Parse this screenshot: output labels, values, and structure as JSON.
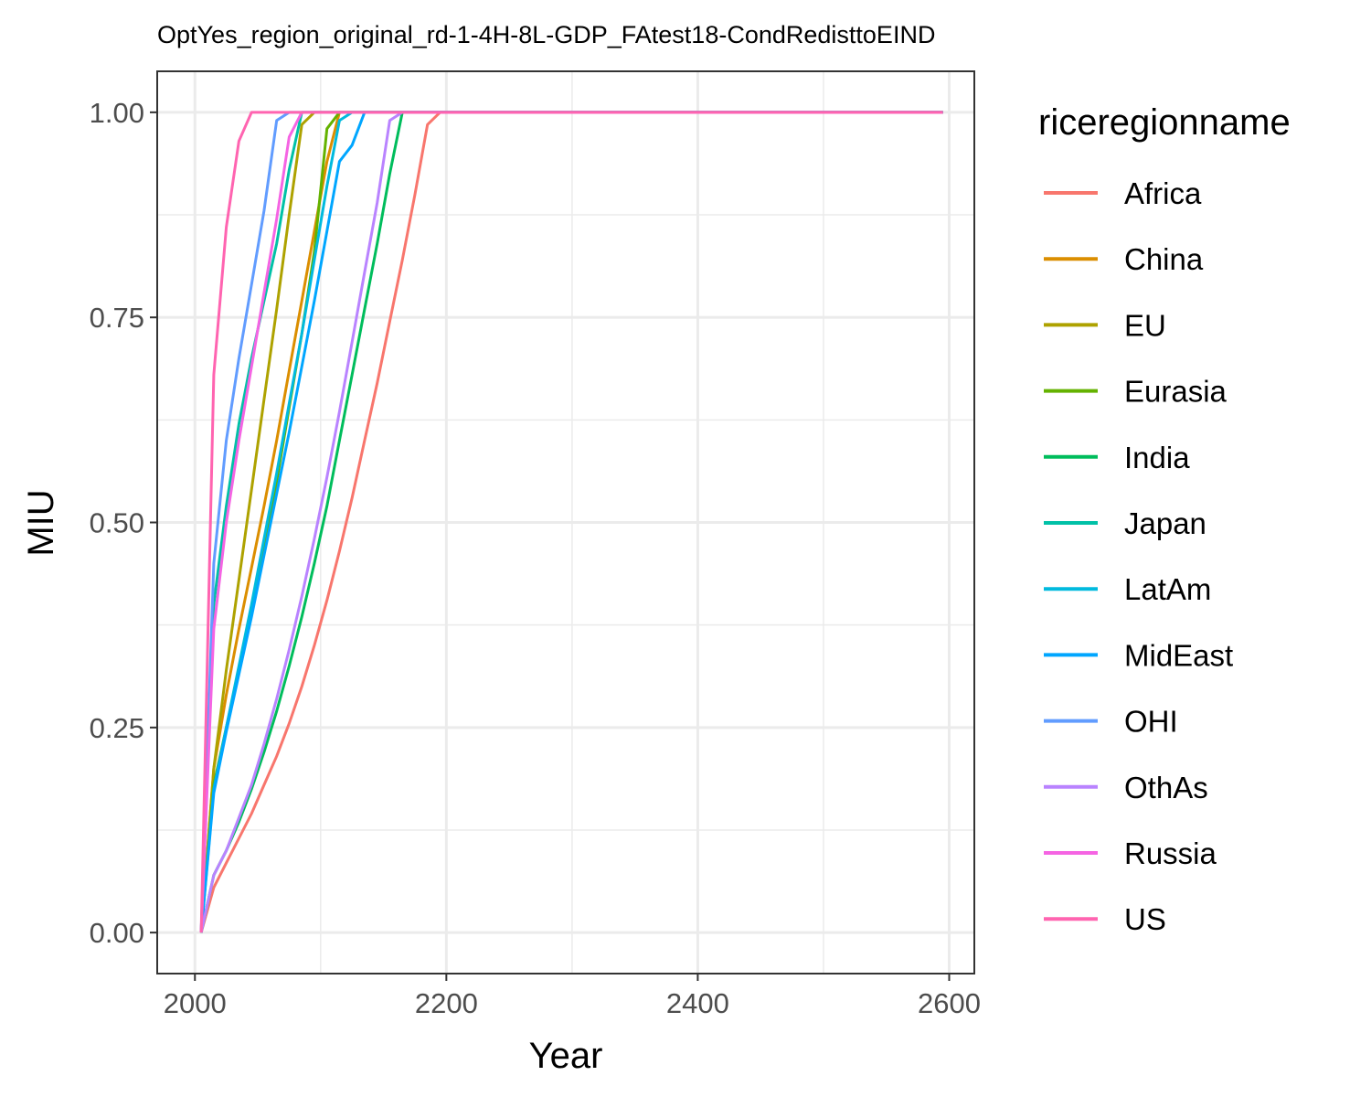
{
  "chart_data": {
    "type": "line",
    "title": "OptYes_region_original_rd-1-4H-8L-GDP_FAtest18-CondRedisttoEIND",
    "xlabel": "Year",
    "ylabel": "MIU",
    "xlim": [
      1970,
      2620
    ],
    "ylim": [
      -0.05,
      1.05
    ],
    "x_ticks": [
      2000,
      2200,
      2400,
      2600
    ],
    "x_tick_labels": [
      "2000",
      "2200",
      "2400",
      "2600"
    ],
    "y_ticks": [
      0,
      0.25,
      0.5,
      0.75,
      1
    ],
    "y_tick_labels": [
      "0.00",
      "0.25",
      "0.50",
      "0.75",
      "1.00"
    ],
    "grid": true,
    "legend": {
      "title": "riceregionname",
      "position": "right"
    },
    "series": [
      {
        "name": "Africa",
        "color": "#F8766D",
        "x": [
          2005,
          2015,
          2025,
          2035,
          2045,
          2055,
          2065,
          2075,
          2085,
          2095,
          2105,
          2115,
          2125,
          2135,
          2145,
          2155,
          2165,
          2175,
          2185,
          2195,
          2595
        ],
        "y": [
          0,
          0.055,
          0.085,
          0.115,
          0.145,
          0.18,
          0.215,
          0.255,
          0.3,
          0.35,
          0.405,
          0.465,
          0.53,
          0.6,
          0.67,
          0.745,
          0.82,
          0.9,
          0.985,
          1,
          1
        ]
      },
      {
        "name": "China",
        "color": "#DB8E00",
        "x": [
          2005,
          2015,
          2025,
          2035,
          2045,
          2055,
          2065,
          2075,
          2085,
          2095,
          2105,
          2115,
          2595
        ],
        "y": [
          0,
          0.2,
          0.29,
          0.37,
          0.445,
          0.52,
          0.6,
          0.685,
          0.77,
          0.855,
          0.94,
          1,
          1
        ]
      },
      {
        "name": "EU",
        "color": "#AEA200",
        "x": [
          2005,
          2015,
          2025,
          2035,
          2045,
          2055,
          2065,
          2075,
          2085,
          2095,
          2595
        ],
        "y": [
          0,
          0.2,
          0.32,
          0.43,
          0.54,
          0.65,
          0.76,
          0.875,
          0.985,
          1,
          1
        ]
      },
      {
        "name": "Eurasia",
        "color": "#64B200",
        "x": [
          2005,
          2015,
          2025,
          2035,
          2045,
          2055,
          2065,
          2075,
          2085,
          2095,
          2105,
          2115,
          2595
        ],
        "y": [
          0,
          0.18,
          0.25,
          0.32,
          0.39,
          0.47,
          0.55,
          0.64,
          0.73,
          0.83,
          0.98,
          1,
          1
        ]
      },
      {
        "name": "India",
        "color": "#00BD5C",
        "x": [
          2005,
          2015,
          2025,
          2035,
          2045,
          2055,
          2065,
          2075,
          2085,
          2095,
          2105,
          2115,
          2125,
          2135,
          2145,
          2155,
          2165,
          2595
        ],
        "y": [
          0,
          0.07,
          0.1,
          0.135,
          0.175,
          0.22,
          0.27,
          0.325,
          0.385,
          0.45,
          0.52,
          0.6,
          0.68,
          0.76,
          0.84,
          0.925,
          1,
          1
        ]
      },
      {
        "name": "Japan",
        "color": "#00C1A7",
        "x": [
          2005,
          2015,
          2025,
          2035,
          2045,
          2055,
          2065,
          2075,
          2085,
          2595
        ],
        "y": [
          0,
          0.4,
          0.52,
          0.62,
          0.7,
          0.77,
          0.84,
          0.93,
          1,
          1
        ]
      },
      {
        "name": "LatAm",
        "color": "#00BADE",
        "x": [
          2005,
          2015,
          2025,
          2035,
          2045,
          2055,
          2065,
          2075,
          2085,
          2095,
          2105,
          2115,
          2125,
          2595
        ],
        "y": [
          0,
          0.175,
          0.25,
          0.325,
          0.4,
          0.48,
          0.56,
          0.645,
          0.73,
          0.82,
          0.91,
          0.99,
          1,
          1
        ]
      },
      {
        "name": "MidEast",
        "color": "#00A6FF",
        "x": [
          2005,
          2015,
          2025,
          2035,
          2045,
          2055,
          2065,
          2075,
          2085,
          2095,
          2105,
          2115,
          2125,
          2135,
          2595
        ],
        "y": [
          0,
          0.17,
          0.245,
          0.315,
          0.385,
          0.46,
          0.535,
          0.61,
          0.69,
          0.77,
          0.855,
          0.94,
          0.96,
          1,
          1
        ]
      },
      {
        "name": "OHI",
        "color": "#619CFF",
        "x": [
          2005,
          2015,
          2025,
          2035,
          2045,
          2055,
          2065,
          2075,
          2595
        ],
        "y": [
          0,
          0.45,
          0.6,
          0.7,
          0.79,
          0.88,
          0.99,
          1,
          1
        ]
      },
      {
        "name": "OthAs",
        "color": "#B983FF",
        "x": [
          2005,
          2015,
          2025,
          2035,
          2045,
          2055,
          2065,
          2075,
          2085,
          2095,
          2105,
          2115,
          2125,
          2135,
          2145,
          2155,
          2165,
          2595
        ],
        "y": [
          0,
          0.07,
          0.1,
          0.14,
          0.18,
          0.23,
          0.285,
          0.345,
          0.41,
          0.48,
          0.555,
          0.635,
          0.72,
          0.805,
          0.89,
          0.99,
          1,
          1
        ]
      },
      {
        "name": "Russia",
        "color": "#F564E3",
        "x": [
          2005,
          2015,
          2025,
          2035,
          2045,
          2055,
          2065,
          2075,
          2085,
          2595
        ],
        "y": [
          0,
          0.37,
          0.5,
          0.6,
          0.69,
          0.78,
          0.87,
          0.97,
          1,
          1
        ]
      },
      {
        "name": "US",
        "color": "#FF64B0",
        "x": [
          2005,
          2015,
          2025,
          2035,
          2045,
          2595
        ],
        "y": [
          0,
          0.68,
          0.86,
          0.965,
          1,
          1
        ]
      }
    ]
  }
}
